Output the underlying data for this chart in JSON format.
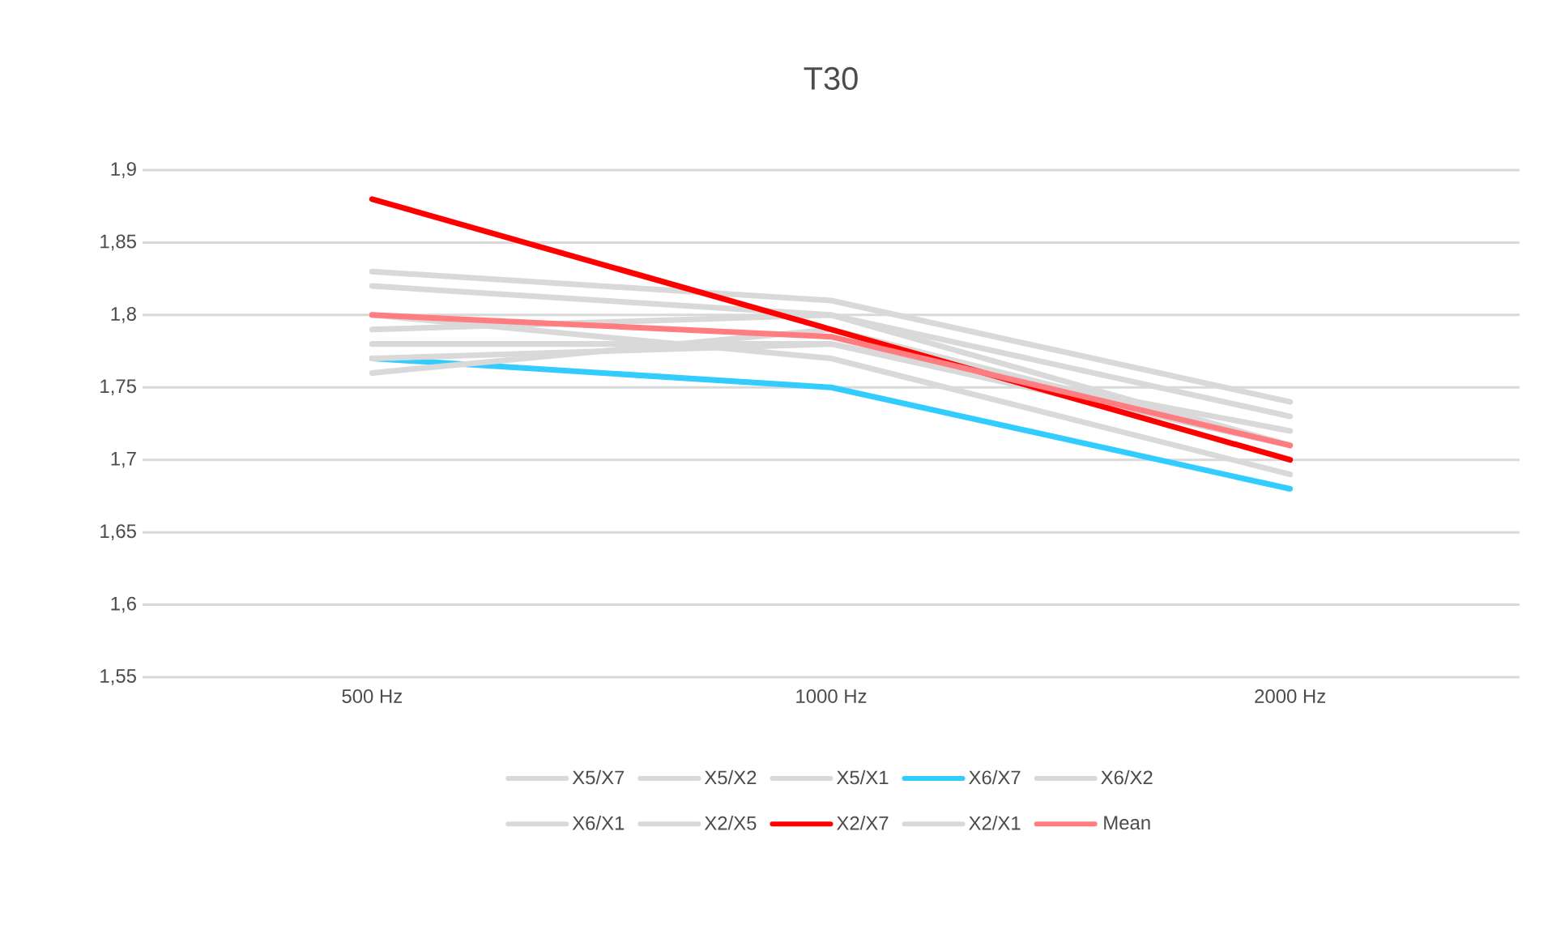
{
  "chart_data": {
    "type": "line",
    "title": "T30",
    "categories": [
      "500 Hz",
      "1000 Hz",
      "2000 Hz"
    ],
    "ylim": [
      1.55,
      1.9
    ],
    "yticks": [
      {
        "value": 1.55,
        "label": "1,55"
      },
      {
        "value": 1.6,
        "label": "1,6"
      },
      {
        "value": 1.65,
        "label": "1,65"
      },
      {
        "value": 1.7,
        "label": "1,7"
      },
      {
        "value": 1.75,
        "label": "1,75"
      },
      {
        "value": 1.8,
        "label": "1,8"
      },
      {
        "value": 1.85,
        "label": "1,85"
      },
      {
        "value": 1.9,
        "label": "1,9"
      }
    ],
    "grid": "y",
    "legend": "bottom",
    "series": [
      {
        "name": "X5/X7",
        "color": "#d9d9d9",
        "values": [
          1.83,
          1.81,
          1.74
        ]
      },
      {
        "name": "X5/X2",
        "color": "#d9d9d9",
        "values": [
          1.82,
          1.8,
          1.73
        ]
      },
      {
        "name": "X5/X1",
        "color": "#d9d9d9",
        "values": [
          1.79,
          1.8,
          1.71
        ]
      },
      {
        "name": "X6/X7",
        "color": "#33ccff",
        "values": [
          1.77,
          1.75,
          1.68
        ]
      },
      {
        "name": "X6/X2",
        "color": "#d9d9d9",
        "values": [
          1.78,
          1.78,
          1.72
        ]
      },
      {
        "name": "X6/X1",
        "color": "#d9d9d9",
        "values": [
          1.77,
          1.78,
          1.71
        ]
      },
      {
        "name": "X2/X5",
        "color": "#d9d9d9",
        "values": [
          1.76,
          1.79,
          1.71
        ]
      },
      {
        "name": "X2/X7",
        "color": "#ff0000",
        "values": [
          1.88,
          1.79,
          1.7
        ]
      },
      {
        "name": "X2/X1",
        "color": "#d9d9d9",
        "values": [
          1.8,
          1.77,
          1.69
        ]
      },
      {
        "name": "Mean",
        "color": "#ff7c80",
        "values": [
          1.8,
          1.785,
          1.71
        ]
      }
    ]
  }
}
